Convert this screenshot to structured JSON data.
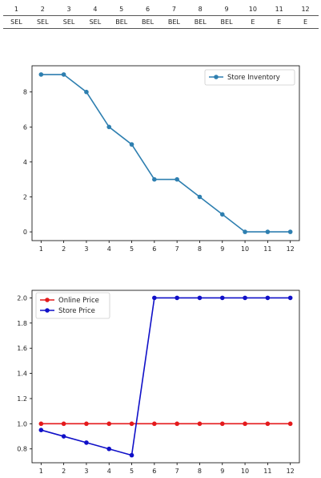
{
  "table": {
    "periods": [
      "1",
      "2",
      "3",
      "4",
      "5",
      "6",
      "7",
      "8",
      "9",
      "10",
      "11",
      "12"
    ],
    "actions": [
      "SEL",
      "SEL",
      "SEL",
      "SEL",
      "BEL",
      "BEL",
      "BEL",
      "BEL",
      "BEL",
      "E",
      "E",
      "E"
    ]
  },
  "chart_data": [
    {
      "type": "line",
      "title": "",
      "xlabel": "",
      "ylabel": "",
      "x": [
        1,
        2,
        3,
        4,
        5,
        6,
        7,
        8,
        9,
        10,
        11,
        12
      ],
      "xlim": [
        0.6,
        12.4
      ],
      "ylim": [
        -0.5,
        9.5
      ],
      "yticks": [
        0,
        2,
        4,
        6,
        8
      ],
      "legend_position": "top-right",
      "grid": false,
      "series": [
        {
          "name": "Store Inventory",
          "color": "#2e7fb0",
          "values": [
            9,
            9,
            8,
            6,
            5,
            3,
            3,
            2,
            1,
            0,
            0,
            0
          ]
        }
      ]
    },
    {
      "type": "line",
      "title": "",
      "xlabel": "",
      "ylabel": "",
      "x": [
        1,
        2,
        3,
        4,
        5,
        6,
        7,
        8,
        9,
        10,
        11,
        12
      ],
      "xlim": [
        0.6,
        12.4
      ],
      "ylim": [
        0.69,
        2.06
      ],
      "yticks": [
        "0.8",
        "1.0",
        "1.2",
        "1.4",
        "1.6",
        "1.8",
        "2.0"
      ],
      "legend_position": "top-left",
      "grid": false,
      "series": [
        {
          "name": "Online Price",
          "color": "#e41a1c",
          "values": [
            1,
            1,
            1,
            1,
            1,
            1,
            1,
            1,
            1,
            1,
            1,
            1
          ]
        },
        {
          "name": "Store Price",
          "color": "#1010c8",
          "values": [
            0.95,
            0.9,
            0.85,
            0.8,
            0.75,
            2,
            2,
            2,
            2,
            2,
            2,
            2
          ]
        }
      ]
    }
  ]
}
